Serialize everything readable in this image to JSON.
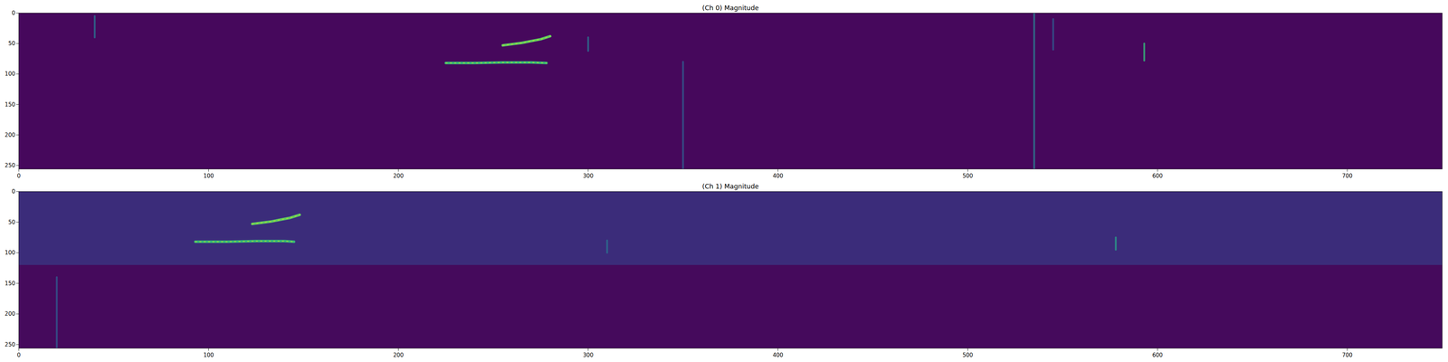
{
  "chart_data": [
    {
      "type": "spectrogram",
      "title": "(Ch 0) Magnitude",
      "color": "#46085c",
      "xlim": [
        0,
        750
      ],
      "ylim": [
        256,
        0
      ],
      "xticks": [
        0,
        100,
        200,
        300,
        400,
        500,
        600,
        700
      ],
      "yticks": [
        0,
        50,
        100,
        150,
        200,
        250
      ],
      "bands": [],
      "series": [
        {
          "type": "line",
          "color": "#5ec962",
          "x": [
            255,
            260,
            265,
            270,
            275,
            280
          ],
          "values": [
            53,
            51,
            49,
            46,
            43,
            38
          ]
        },
        {
          "type": "line",
          "color": "#35b779",
          "x": [
            225,
            240,
            255,
            270,
            278
          ],
          "values": [
            82,
            82,
            81,
            81,
            82
          ]
        },
        {
          "type": "line",
          "color": "#2c7c8e",
          "x": [
            535,
            535
          ],
          "values": [
            0,
            256
          ]
        },
        {
          "type": "line",
          "color": "#35b779",
          "x": [
            593,
            593
          ],
          "values": [
            50,
            78
          ]
        },
        {
          "type": "line",
          "color": "#2c6e8e",
          "x": [
            40,
            40
          ],
          "values": [
            5,
            40
          ]
        },
        {
          "type": "line",
          "color": "#2c6e8e",
          "x": [
            300,
            300
          ],
          "values": [
            40,
            62
          ]
        },
        {
          "type": "line",
          "color": "#31578c",
          "x": [
            350,
            350
          ],
          "values": [
            80,
            256
          ]
        },
        {
          "type": "line",
          "color": "#31578c",
          "x": [
            545,
            545
          ],
          "values": [
            10,
            60
          ]
        }
      ]
    },
    {
      "type": "spectrogram",
      "title": "(Ch 1) Magnitude",
      "color": "#450a5c",
      "xlim": [
        0,
        750
      ],
      "ylim": [
        256,
        0
      ],
      "xticks": [
        0,
        100,
        200,
        300,
        400,
        500,
        600,
        700
      ],
      "yticks": [
        0,
        50,
        100,
        150,
        200,
        250
      ],
      "bands": [
        {
          "y": [
            0,
            120
          ],
          "color": "#3b2c7a"
        }
      ],
      "series": [
        {
          "type": "line",
          "color": "#5ec962",
          "x": [
            123,
            128,
            133,
            138,
            143,
            148
          ],
          "values": [
            53,
            51,
            49,
            46,
            43,
            38
          ]
        },
        {
          "type": "line",
          "color": "#35b779",
          "x": [
            93,
            110,
            125,
            140,
            145
          ],
          "values": [
            82,
            82,
            81,
            81,
            82
          ]
        },
        {
          "type": "line",
          "color": "#2a9a8a",
          "x": [
            578,
            578
          ],
          "values": [
            75,
            95
          ]
        },
        {
          "type": "line",
          "color": "#2c6e8e",
          "x": [
            310,
            310
          ],
          "values": [
            80,
            100
          ]
        },
        {
          "type": "line",
          "color": "#31578c",
          "x": [
            20,
            20
          ],
          "values": [
            140,
            256
          ]
        }
      ]
    }
  ]
}
